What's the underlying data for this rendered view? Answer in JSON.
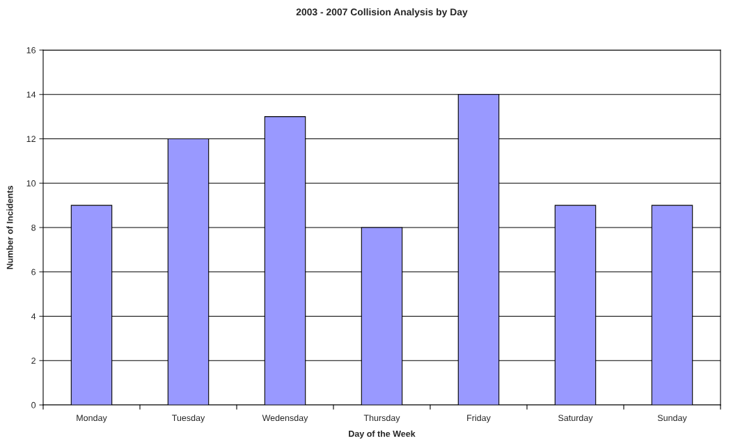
{
  "chart_data": {
    "type": "bar",
    "title": "2003 - 2007 Collision Analysis by Day",
    "xlabel": "Day of the Week",
    "ylabel": "Number of Incidents",
    "categories": [
      "Monday",
      "Tuesday",
      "Wedensday",
      "Thursday",
      "Friday",
      "Saturday",
      "Sunday"
    ],
    "values": [
      9,
      12,
      13,
      8,
      14,
      9,
      9
    ],
    "color": "#9999ff",
    "ylim": [
      0,
      16
    ],
    "yticks": [
      0,
      2,
      4,
      6,
      8,
      10,
      12,
      14,
      16
    ],
    "grid": "y"
  }
}
